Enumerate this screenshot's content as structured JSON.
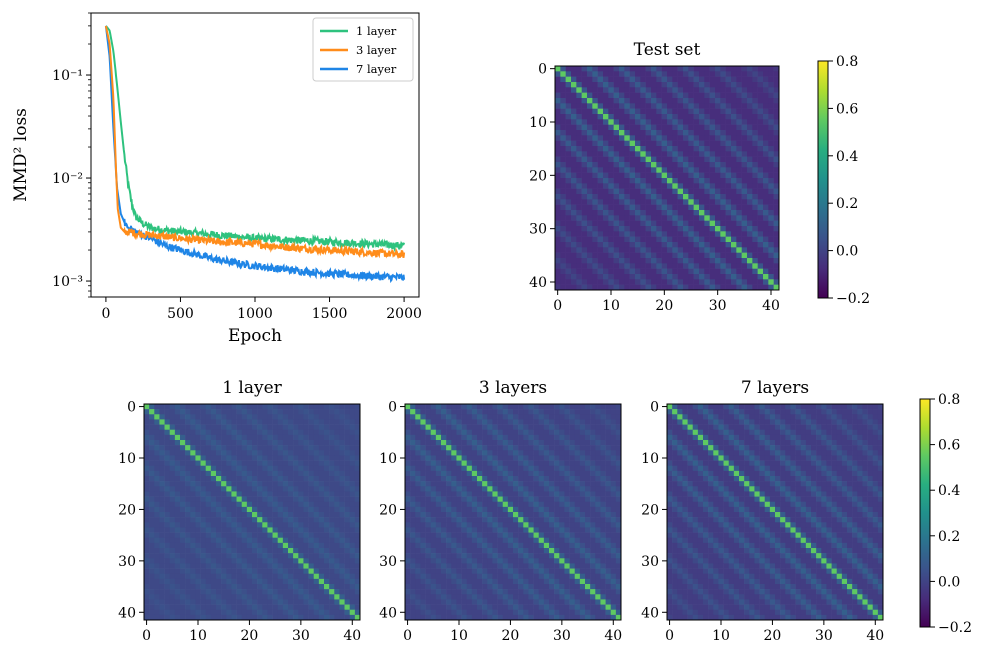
{
  "chart_data": [
    {
      "type": "line",
      "panel": "loss-curve",
      "title": "",
      "xlabel": "Epoch",
      "ylabel": "MMD² loss",
      "yscale": "log",
      "xlim": [
        -100,
        2100
      ],
      "ylim": [
        0.0007,
        0.4
      ],
      "xticks": [
        0,
        500,
        1000,
        1500,
        2000
      ],
      "xtick_labels": [
        "0",
        "500",
        "1000",
        "1500",
        "2000"
      ],
      "yticks": [
        0.001,
        0.01,
        0.1
      ],
      "ytick_labels": [
        "10⁻³",
        "10⁻²",
        "10⁻¹"
      ],
      "legend_position": "top-right",
      "series": [
        {
          "name": "1 layer",
          "color": "#2ec27e",
          "x": [
            0,
            25,
            50,
            75,
            100,
            125,
            150,
            175,
            200,
            250,
            300,
            400,
            500,
            750,
            1000,
            1250,
            1500,
            1750,
            2000
          ],
          "values": [
            0.3,
            0.27,
            0.17,
            0.08,
            0.035,
            0.016,
            0.0085,
            0.0055,
            0.0042,
            0.0036,
            0.0033,
            0.0031,
            0.003,
            0.0028,
            0.0026,
            0.0025,
            0.0024,
            0.0023,
            0.0022
          ]
        },
        {
          "name": "3 layer",
          "color": "#ff8c1a",
          "x": [
            0,
            25,
            50,
            65,
            80,
            100,
            125,
            150,
            200,
            300,
            500,
            750,
            1000,
            1250,
            1500,
            1750,
            2000
          ],
          "values": [
            0.3,
            0.2,
            0.06,
            0.015,
            0.005,
            0.0033,
            0.003,
            0.003,
            0.0029,
            0.0028,
            0.0026,
            0.0024,
            0.0023,
            0.0021,
            0.002,
            0.0019,
            0.0018
          ]
        },
        {
          "name": "7 layer",
          "color": "#1f85e6",
          "x": [
            0,
            25,
            50,
            75,
            100,
            125,
            150,
            200,
            300,
            400,
            500,
            750,
            1000,
            1250,
            1500,
            1750,
            2000
          ],
          "values": [
            0.3,
            0.15,
            0.03,
            0.008,
            0.0045,
            0.0037,
            0.0033,
            0.003,
            0.0026,
            0.0022,
            0.002,
            0.0016,
            0.0014,
            0.00127,
            0.00118,
            0.00112,
            0.00108
          ]
        }
      ]
    },
    {
      "type": "heatmap",
      "panel": "test-set",
      "title": "Test set",
      "size": 42,
      "xticks": [
        0,
        10,
        20,
        30,
        40
      ],
      "yticks": [
        0,
        10,
        20,
        30,
        40
      ],
      "diagonal_value": 0.55,
      "off_band_period": 6,
      "band_value": 0.12,
      "background_value": -0.07
    },
    {
      "type": "heatmap",
      "panel": "1-layer",
      "title": "1 layer",
      "size": 42,
      "xticks": [
        0,
        10,
        20,
        30,
        40
      ],
      "yticks": [
        0,
        10,
        20,
        30,
        40
      ],
      "diagonal_value": 0.55,
      "off_band_period": 6,
      "band_value": 0.09,
      "background_value": 0.02
    },
    {
      "type": "heatmap",
      "panel": "3-layers",
      "title": "3 layers",
      "size": 42,
      "xticks": [
        0,
        10,
        20,
        30,
        40
      ],
      "yticks": [
        0,
        10,
        20,
        30,
        40
      ],
      "diagonal_value": 0.55,
      "off_band_period": 6,
      "band_value": 0.11,
      "background_value": 0.0
    },
    {
      "type": "heatmap",
      "panel": "7-layers",
      "title": "7 layers",
      "size": 42,
      "xticks": [
        0,
        10,
        20,
        30,
        40
      ],
      "yticks": [
        0,
        10,
        20,
        30,
        40
      ],
      "diagonal_value": 0.55,
      "off_band_period": 6,
      "band_value": 0.12,
      "background_value": -0.02
    }
  ],
  "colorbar": {
    "colormap": "viridis",
    "vmin": -0.2,
    "vmax": 0.8,
    "ticks": [
      -0.2,
      0.0,
      0.2,
      0.4,
      0.6,
      0.8
    ],
    "tick_labels": [
      "−0.2",
      "0.0",
      "0.2",
      "0.4",
      "0.6",
      "0.8"
    ]
  }
}
